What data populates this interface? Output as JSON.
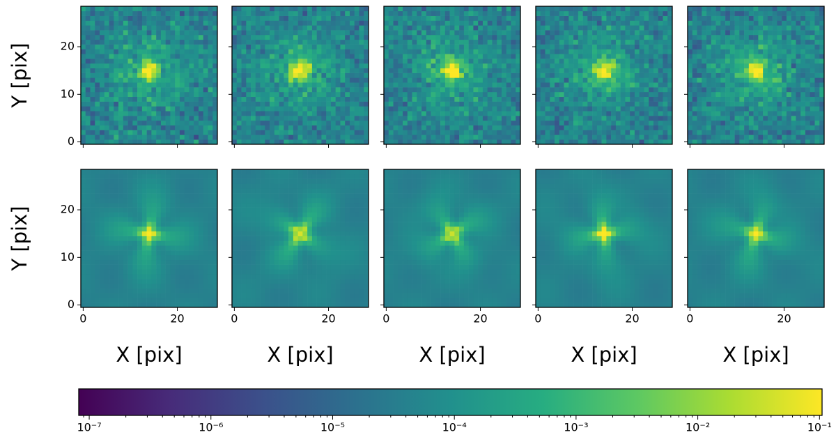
{
  "chart_data": [
    {
      "type": "heatmap",
      "xlim": [
        -0.5,
        28.5
      ],
      "ylim": [
        -0.5,
        28.5
      ],
      "xticks": [
        0,
        20
      ],
      "yticks": [
        0,
        10,
        20
      ],
      "ylabel": "Y [pix]",
      "peak": [
        14,
        15
      ]
    },
    {
      "type": "heatmap",
      "xlim": [
        -0.5,
        28.5
      ],
      "ylim": [
        -0.5,
        28.5
      ],
      "xticks": [
        0,
        20
      ],
      "yticks": [
        0,
        10,
        20
      ],
      "peak": [
        14,
        15
      ]
    },
    {
      "type": "heatmap",
      "xlim": [
        -0.5,
        28.5
      ],
      "ylim": [
        -0.5,
        28.5
      ],
      "xticks": [
        0,
        20
      ],
      "yticks": [
        0,
        10,
        20
      ],
      "peak": [
        14,
        15
      ]
    },
    {
      "type": "heatmap",
      "xlim": [
        -0.5,
        28.5
      ],
      "ylim": [
        -0.5,
        28.5
      ],
      "xticks": [
        0,
        20
      ],
      "yticks": [
        0,
        10,
        20
      ],
      "peak": [
        14,
        15
      ]
    },
    {
      "type": "heatmap",
      "xlim": [
        -0.5,
        28.5
      ],
      "ylim": [
        -0.5,
        28.5
      ],
      "xticks": [
        0,
        20
      ],
      "yticks": [
        0,
        10,
        20
      ],
      "peak": [
        14,
        15
      ]
    },
    {
      "type": "heatmap",
      "xlim": [
        -0.5,
        28.5
      ],
      "ylim": [
        -0.5,
        28.5
      ],
      "xticks": [
        0,
        20
      ],
      "yticks": [
        0,
        10,
        20
      ],
      "xlabel": "X [pix]",
      "ylabel": "Y [pix]",
      "peak": [
        14,
        15
      ]
    },
    {
      "type": "heatmap",
      "xlim": [
        -0.5,
        28.5
      ],
      "ylim": [
        -0.5,
        28.5
      ],
      "xticks": [
        0,
        20
      ],
      "yticks": [
        0,
        10,
        20
      ],
      "xlabel": "X [pix]",
      "peak": [
        14,
        15
      ]
    },
    {
      "type": "heatmap",
      "xlim": [
        -0.5,
        28.5
      ],
      "ylim": [
        -0.5,
        28.5
      ],
      "xticks": [
        0,
        20
      ],
      "yticks": [
        0,
        10,
        20
      ],
      "xlabel": "X [pix]",
      "peak": [
        14,
        15
      ]
    },
    {
      "type": "heatmap",
      "xlim": [
        -0.5,
        28.5
      ],
      "ylim": [
        -0.5,
        28.5
      ],
      "xticks": [
        0,
        20
      ],
      "yticks": [
        0,
        10,
        20
      ],
      "xlabel": "X [pix]",
      "peak": [
        14,
        15
      ]
    },
    {
      "type": "heatmap",
      "xlim": [
        -0.5,
        28.5
      ],
      "ylim": [
        -0.5,
        28.5
      ],
      "xticks": [
        0,
        20
      ],
      "yticks": [
        0,
        10,
        20
      ],
      "xlabel": "X [pix]",
      "peak": [
        14,
        15
      ]
    },
    {
      "type": "colorbar",
      "colormap": "viridis",
      "log": true,
      "xlim": [
        8.2e-08,
        0.105
      ],
      "xticks": [
        {
          "value": 1e-07,
          "label": "10⁻⁷"
        },
        {
          "value": 1e-06,
          "label": "10⁻⁶"
        },
        {
          "value": 1e-05,
          "label": "10⁻⁵"
        },
        {
          "value": 0.0001,
          "label": "10⁻⁴"
        },
        {
          "value": 0.001,
          "label": "10⁻³"
        },
        {
          "value": 0.01,
          "label": "10⁻²"
        },
        {
          "value": 0.1,
          "label": "10⁻¹"
        }
      ]
    }
  ]
}
